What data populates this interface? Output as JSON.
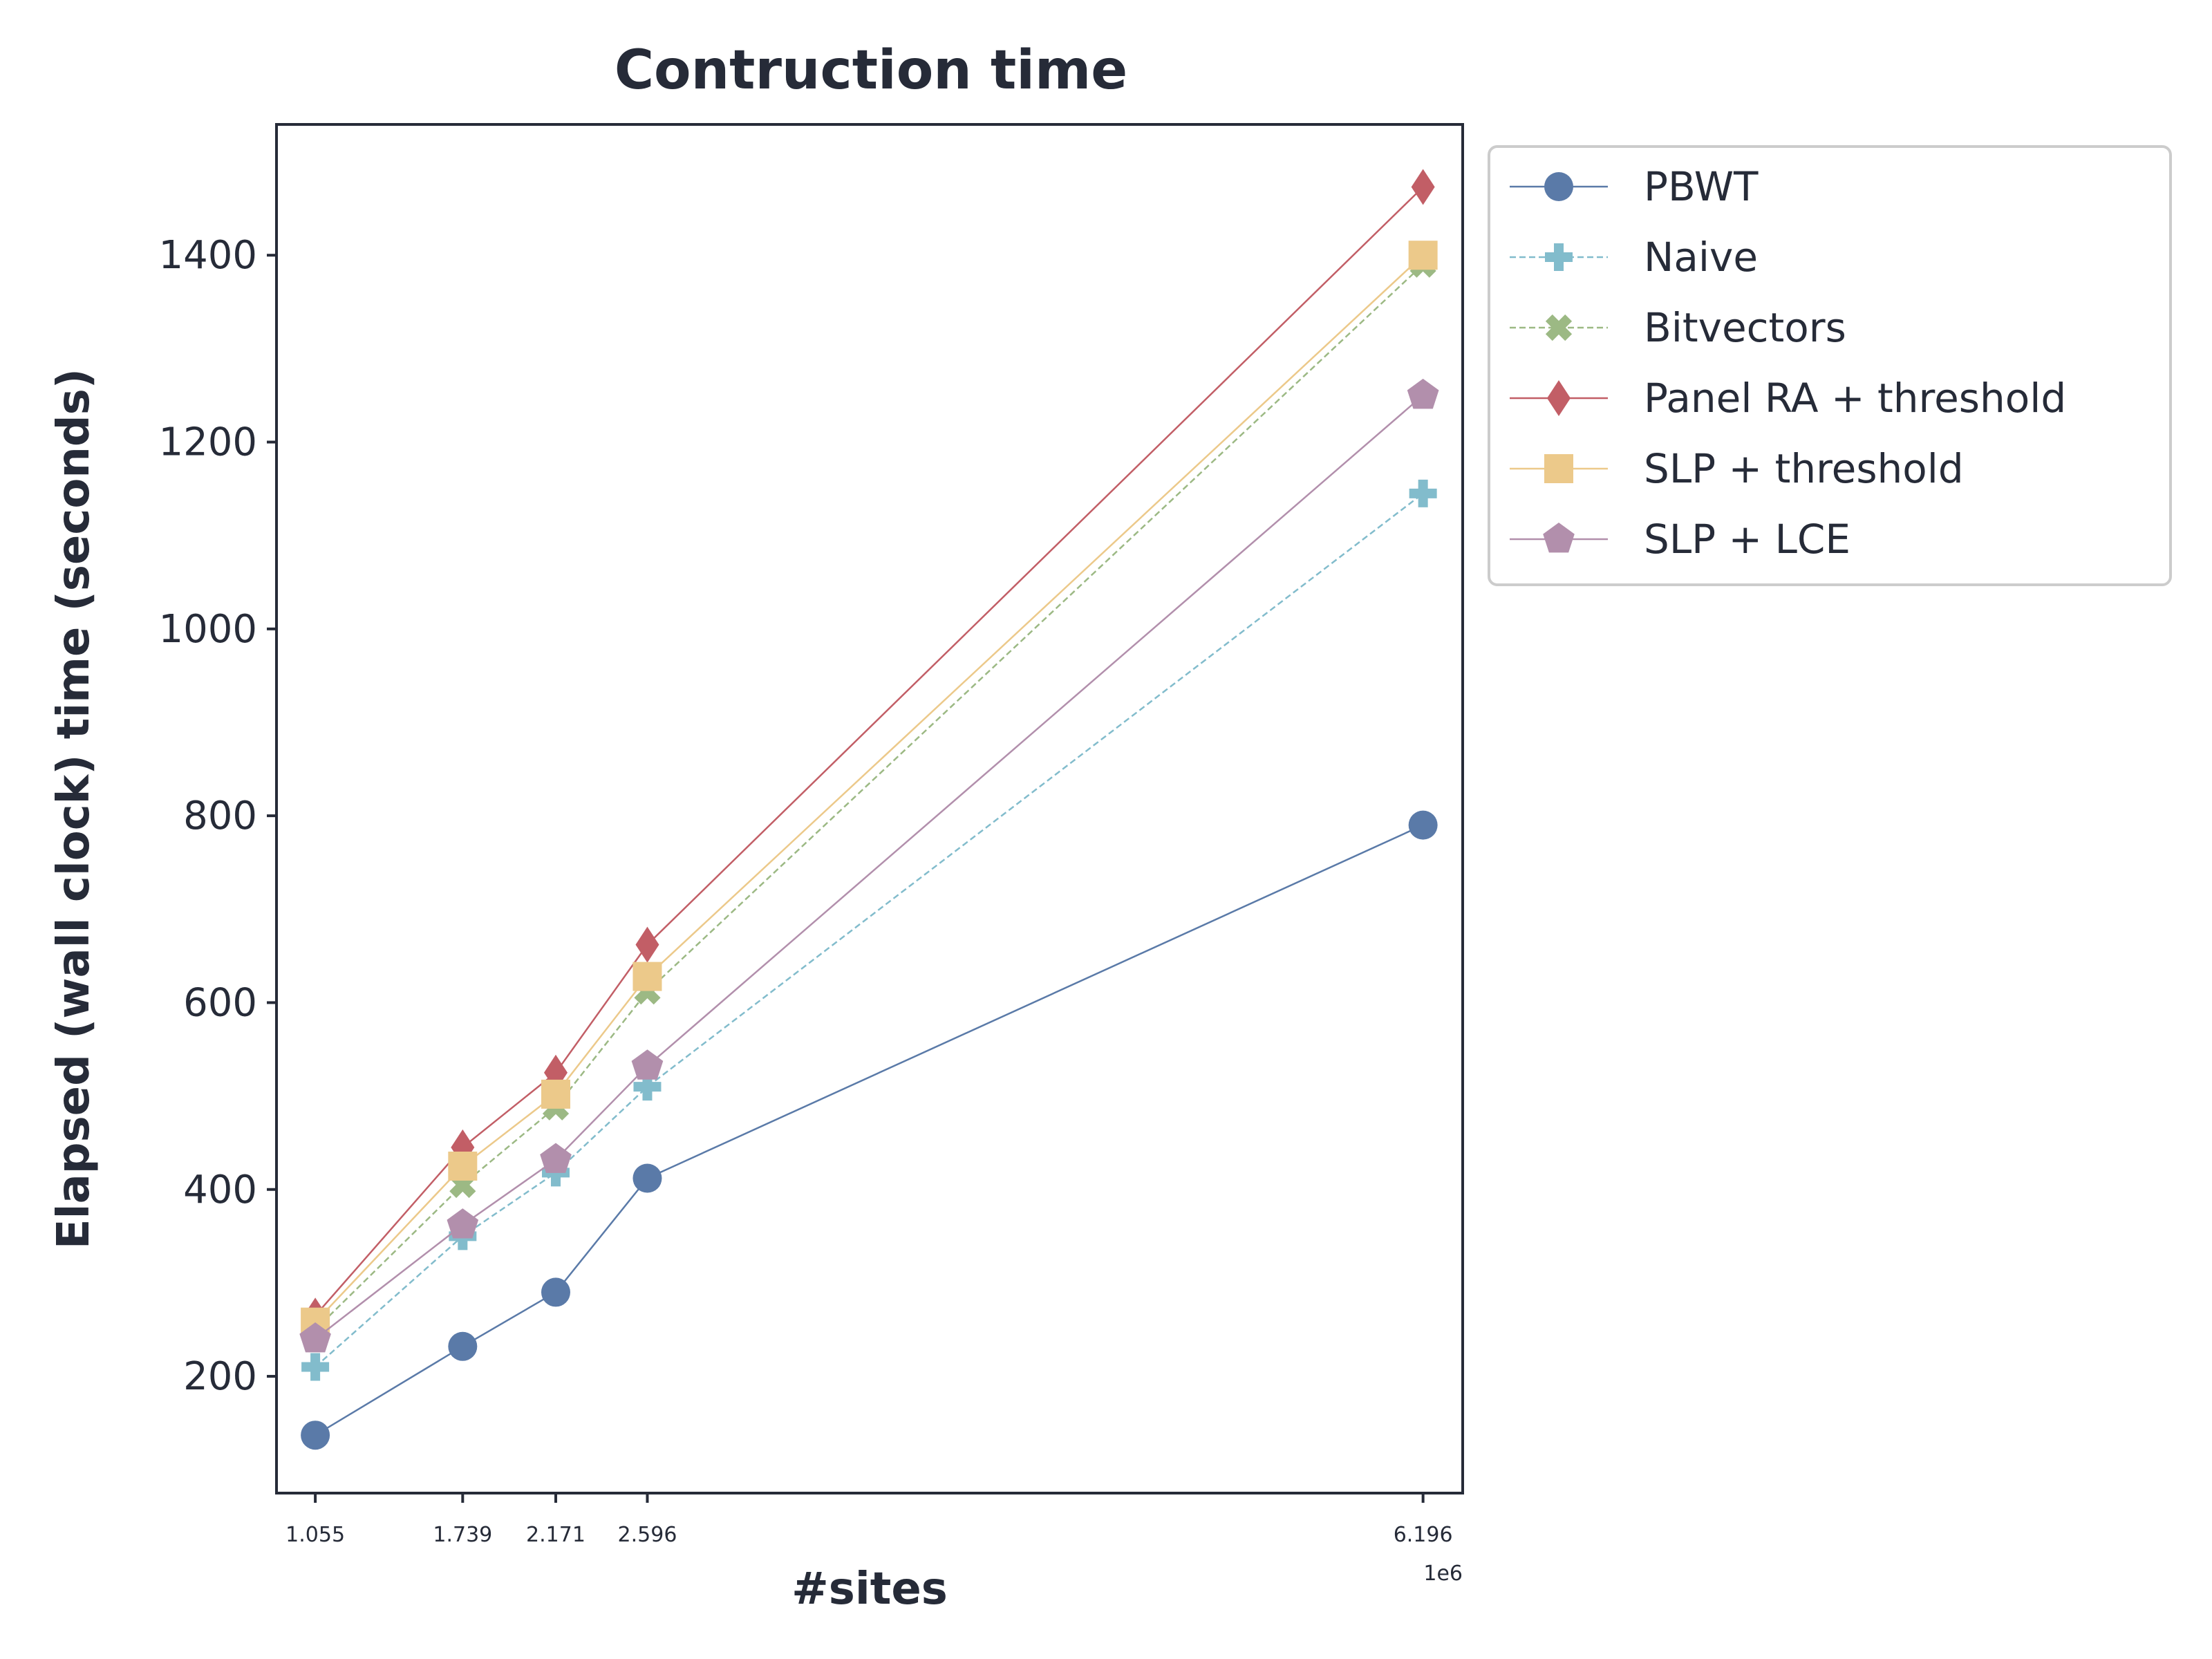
{
  "chart_data": {
    "type": "line",
    "title": "Contruction time",
    "xlabel": "#sites",
    "ylabel": "Elapsed (wall clock) time (seconds)",
    "x_offset_label": "1e6",
    "x": [
      1.055,
      1.739,
      2.171,
      2.596,
      6.196
    ],
    "x_tick_labels": [
      "1.055",
      "1.739",
      "2.171",
      "2.596",
      "6.196"
    ],
    "xlim": [
      0.875,
      6.38
    ],
    "ylim": [
      75,
      1540
    ],
    "y_ticks": [
      200,
      400,
      600,
      800,
      1000,
      1200,
      1400
    ],
    "grid": false,
    "legend_position": "outside upper right",
    "series": [
      {
        "name": "PBWT",
        "values": [
          137,
          232,
          290,
          412,
          790
        ],
        "color": "#5a7aa8",
        "marker": "circle",
        "dash": "solid"
      },
      {
        "name": "Naive",
        "values": [
          210,
          350,
          418,
          510,
          1145
        ],
        "color": "#82bccc",
        "marker": "plus",
        "dash": "dashed"
      },
      {
        "name": "Bitvectors",
        "values": [
          250,
          405,
          488,
          612,
          1390
        ],
        "color": "#9cb984",
        "marker": "x",
        "dash": "dashed"
      },
      {
        "name": "Panel RA + threshold",
        "values": [
          265,
          445,
          525,
          662,
          1473
        ],
        "color": "#c25e66",
        "marker": "diamond",
        "dash": "solid"
      },
      {
        "name": "SLP + threshold",
        "values": [
          258,
          425,
          502,
          628,
          1400
        ],
        "color": "#ecc98a",
        "marker": "square",
        "dash": "solid"
      },
      {
        "name": "SLP + LCE",
        "values": [
          240,
          362,
          432,
          532,
          1250
        ],
        "color": "#b28fac",
        "marker": "pentagon",
        "dash": "solid"
      }
    ]
  }
}
